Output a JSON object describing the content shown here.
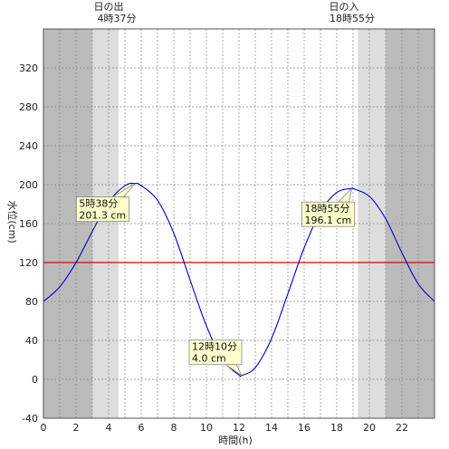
{
  "chart_data": {
    "type": "line",
    "xlabel": "時間(h)",
    "ylabel": "水位(cm)",
    "xlim": [
      0,
      24
    ],
    "ylim": [
      -40,
      360
    ],
    "x_ticks": [
      0,
      2,
      4,
      6,
      8,
      10,
      12,
      14,
      16,
      18,
      20,
      22
    ],
    "y_ticks": [
      -40,
      0,
      40,
      80,
      120,
      160,
      200,
      240,
      280,
      320
    ],
    "grid": true,
    "reference_line": {
      "value": 120,
      "color": "#e00000"
    },
    "series": [
      {
        "color": "#0000cc",
        "points": [
          [
            0,
            80
          ],
          [
            1,
            95
          ],
          [
            2,
            120
          ],
          [
            3,
            152
          ],
          [
            4,
            182
          ],
          [
            5,
            199
          ],
          [
            5.633,
            201.3
          ],
          [
            6,
            199
          ],
          [
            7,
            184
          ],
          [
            8,
            150
          ],
          [
            9,
            102
          ],
          [
            10,
            55
          ],
          [
            11,
            20
          ],
          [
            12,
            4.5
          ],
          [
            12.167,
            4.0
          ],
          [
            13,
            12
          ],
          [
            14,
            42
          ],
          [
            15,
            88
          ],
          [
            16,
            135
          ],
          [
            17,
            172
          ],
          [
            18,
            192
          ],
          [
            18.917,
            196.1
          ],
          [
            19,
            196
          ],
          [
            20,
            188
          ],
          [
            21,
            165
          ],
          [
            22,
            130
          ],
          [
            23,
            98
          ],
          [
            24,
            80
          ]
        ]
      }
    ],
    "annotations": [
      {
        "x": 5.633,
        "y": 201.3,
        "line1": "5時38分",
        "line2": "201.3 cm"
      },
      {
        "x": 12.167,
        "y": 4.0,
        "line1": "12時10分",
        "line2": "4.0 cm"
      },
      {
        "x": 18.917,
        "y": 196.1,
        "line1": "18時55分",
        "line2": "196.1 cm"
      }
    ],
    "sun": {
      "rise_label": "日の出",
      "rise_time": "4時37分",
      "rise_hour": 4.617,
      "set_label": "日の入",
      "set_time": "18時55分",
      "set_hour": 18.917,
      "night_color": "#bbbbbb",
      "twilight_color": "#dddddd",
      "day_color": "#ffffff"
    }
  }
}
